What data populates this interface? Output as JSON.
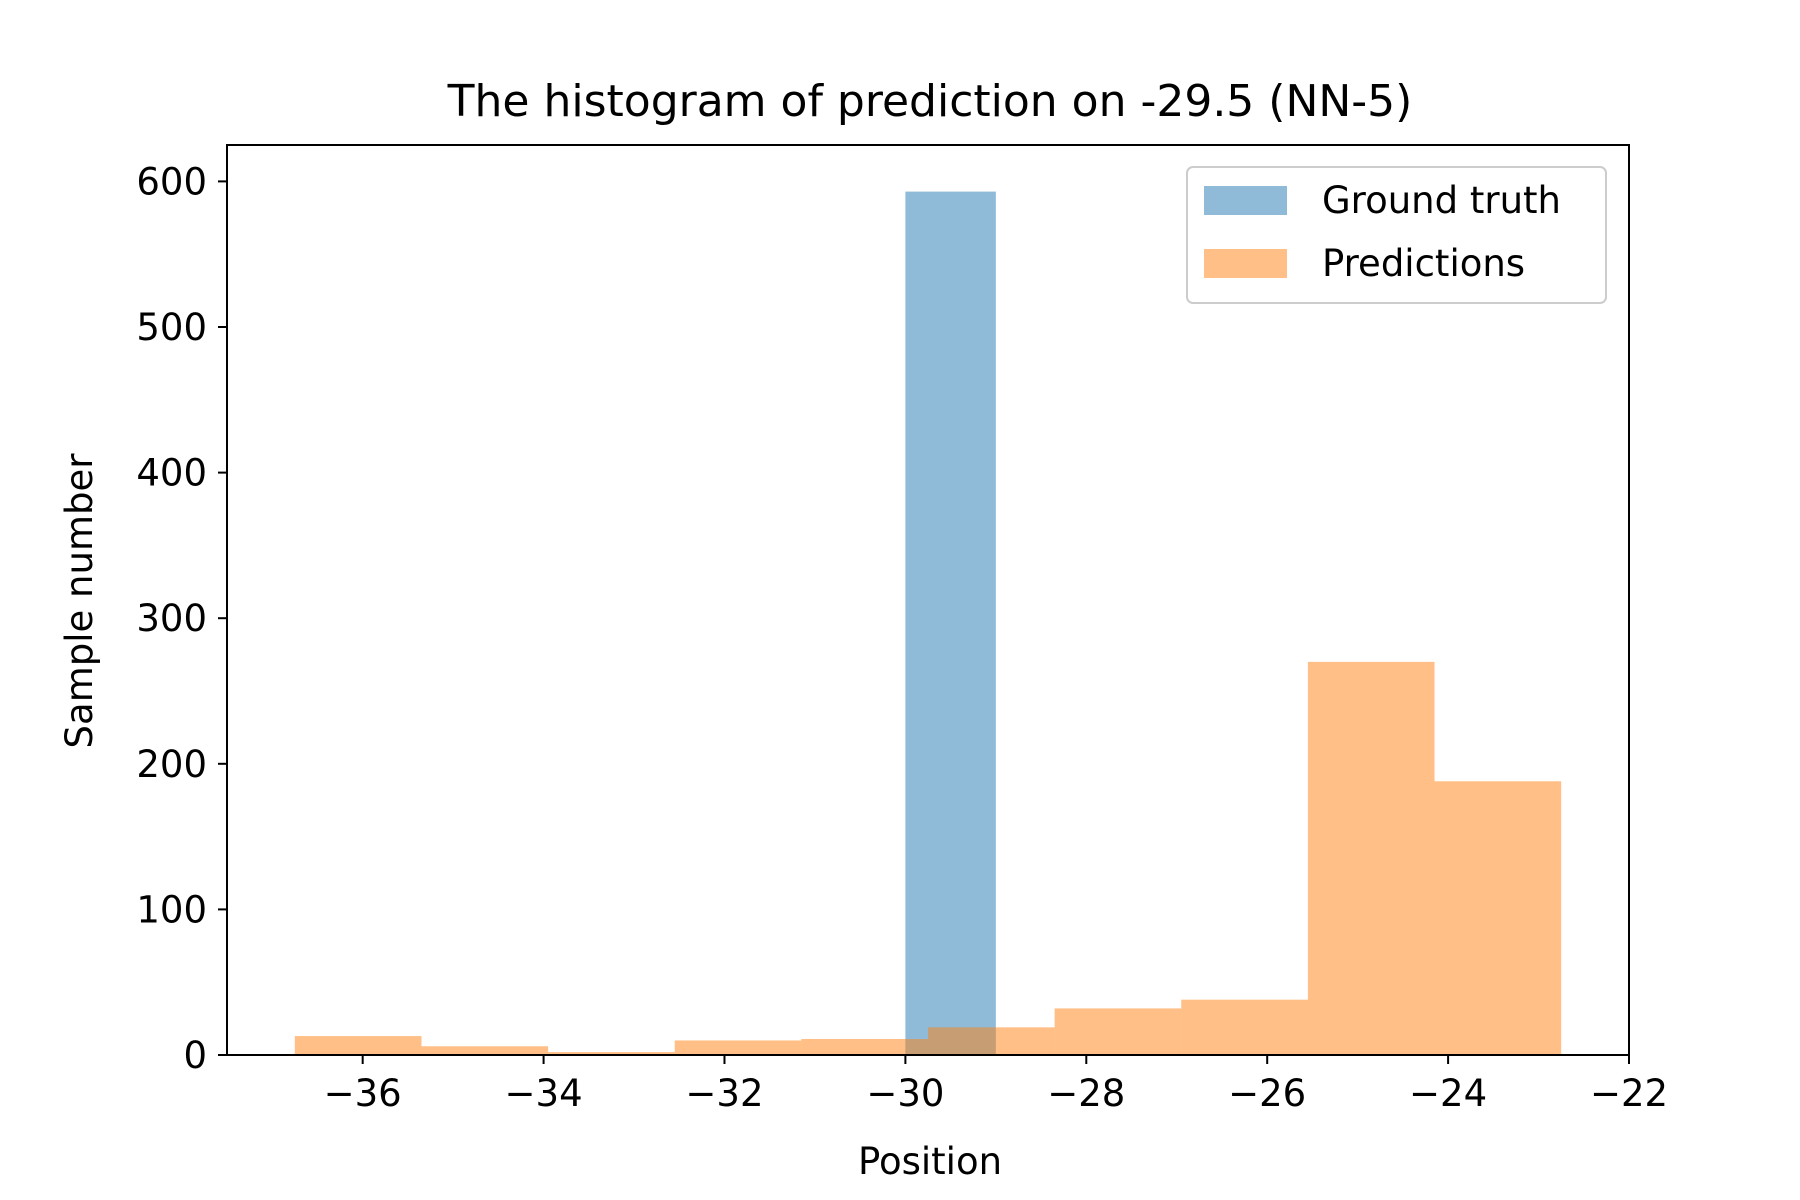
{
  "chart_data": {
    "type": "histogram",
    "title": "The histogram of prediction on -29.5 (NN-5)",
    "xlabel": "Position",
    "ylabel": "Sample number",
    "xlim": [
      -37.5,
      -22
    ],
    "ylim": [
      0,
      625
    ],
    "xticks": [
      -36,
      -34,
      -32,
      -30,
      -28,
      -26,
      -24,
      -22
    ],
    "xtick_labels": [
      "−36",
      "−34",
      "−32",
      "−30",
      "−28",
      "−26",
      "−24",
      "−22"
    ],
    "yticks": [
      0,
      100,
      200,
      300,
      400,
      500,
      600
    ],
    "ytick_labels": [
      "0",
      "100",
      "200",
      "300",
      "400",
      "500",
      "600"
    ],
    "grid": false,
    "legend_position": "top-right",
    "series": [
      {
        "name": "Ground truth",
        "color": "#1f77b4",
        "opacity": 0.5,
        "bins": [
          {
            "x0": -30.0,
            "x1": -29.0,
            "count": 593
          }
        ]
      },
      {
        "name": "Predictions",
        "color": "#ff7f0e",
        "opacity": 0.5,
        "bins": [
          {
            "x0": -36.75,
            "x1": -35.35,
            "count": 13
          },
          {
            "x0": -35.35,
            "x1": -33.95,
            "count": 6
          },
          {
            "x0": -33.95,
            "x1": -32.55,
            "count": 2
          },
          {
            "x0": -32.55,
            "x1": -31.15,
            "count": 10
          },
          {
            "x0": -31.15,
            "x1": -29.75,
            "count": 11
          },
          {
            "x0": -29.75,
            "x1": -28.35,
            "count": 19
          },
          {
            "x0": -28.35,
            "x1": -26.95,
            "count": 32
          },
          {
            "x0": -26.95,
            "x1": -25.55,
            "count": 38
          },
          {
            "x0": -25.55,
            "x1": -24.15,
            "count": 270
          },
          {
            "x0": -24.15,
            "x1": -22.75,
            "count": 188
          }
        ]
      }
    ]
  }
}
